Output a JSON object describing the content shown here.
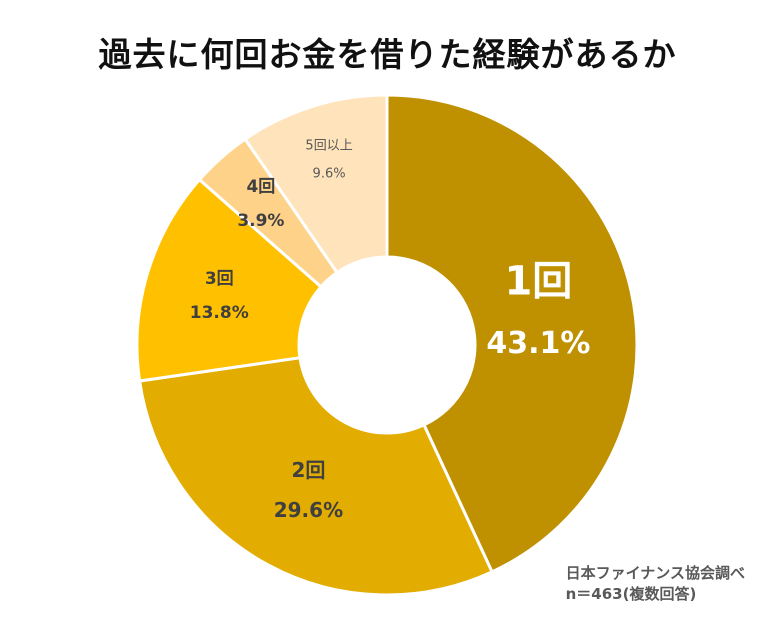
{
  "chart_data": {
    "type": "pie",
    "title": "過去に何回お金を借りた経験があるか",
    "categories": [
      "1回",
      "2回",
      "3回",
      "4回",
      "5回以上"
    ],
    "values": [
      43.1,
      29.6,
      13.8,
      3.9,
      9.6
    ],
    "value_labels": [
      "43.1%",
      "29.6%",
      "13.8%",
      "3.9%",
      "9.6%"
    ],
    "colors": [
      "#BF9000",
      "#E2AC00",
      "#FFC000",
      "#FFD28A",
      "#FFE3BB"
    ],
    "label_colors": [
      "#FFFFFF",
      "#3F3F3F",
      "#3F3F3F",
      "#3F3F3F",
      "#595959"
    ],
    "donut": true,
    "start_angle_deg": 0,
    "direction": "clockwise"
  },
  "source": {
    "line1": "日本ファイナンス協会調べ",
    "line2": "n＝463(複数回答)"
  }
}
